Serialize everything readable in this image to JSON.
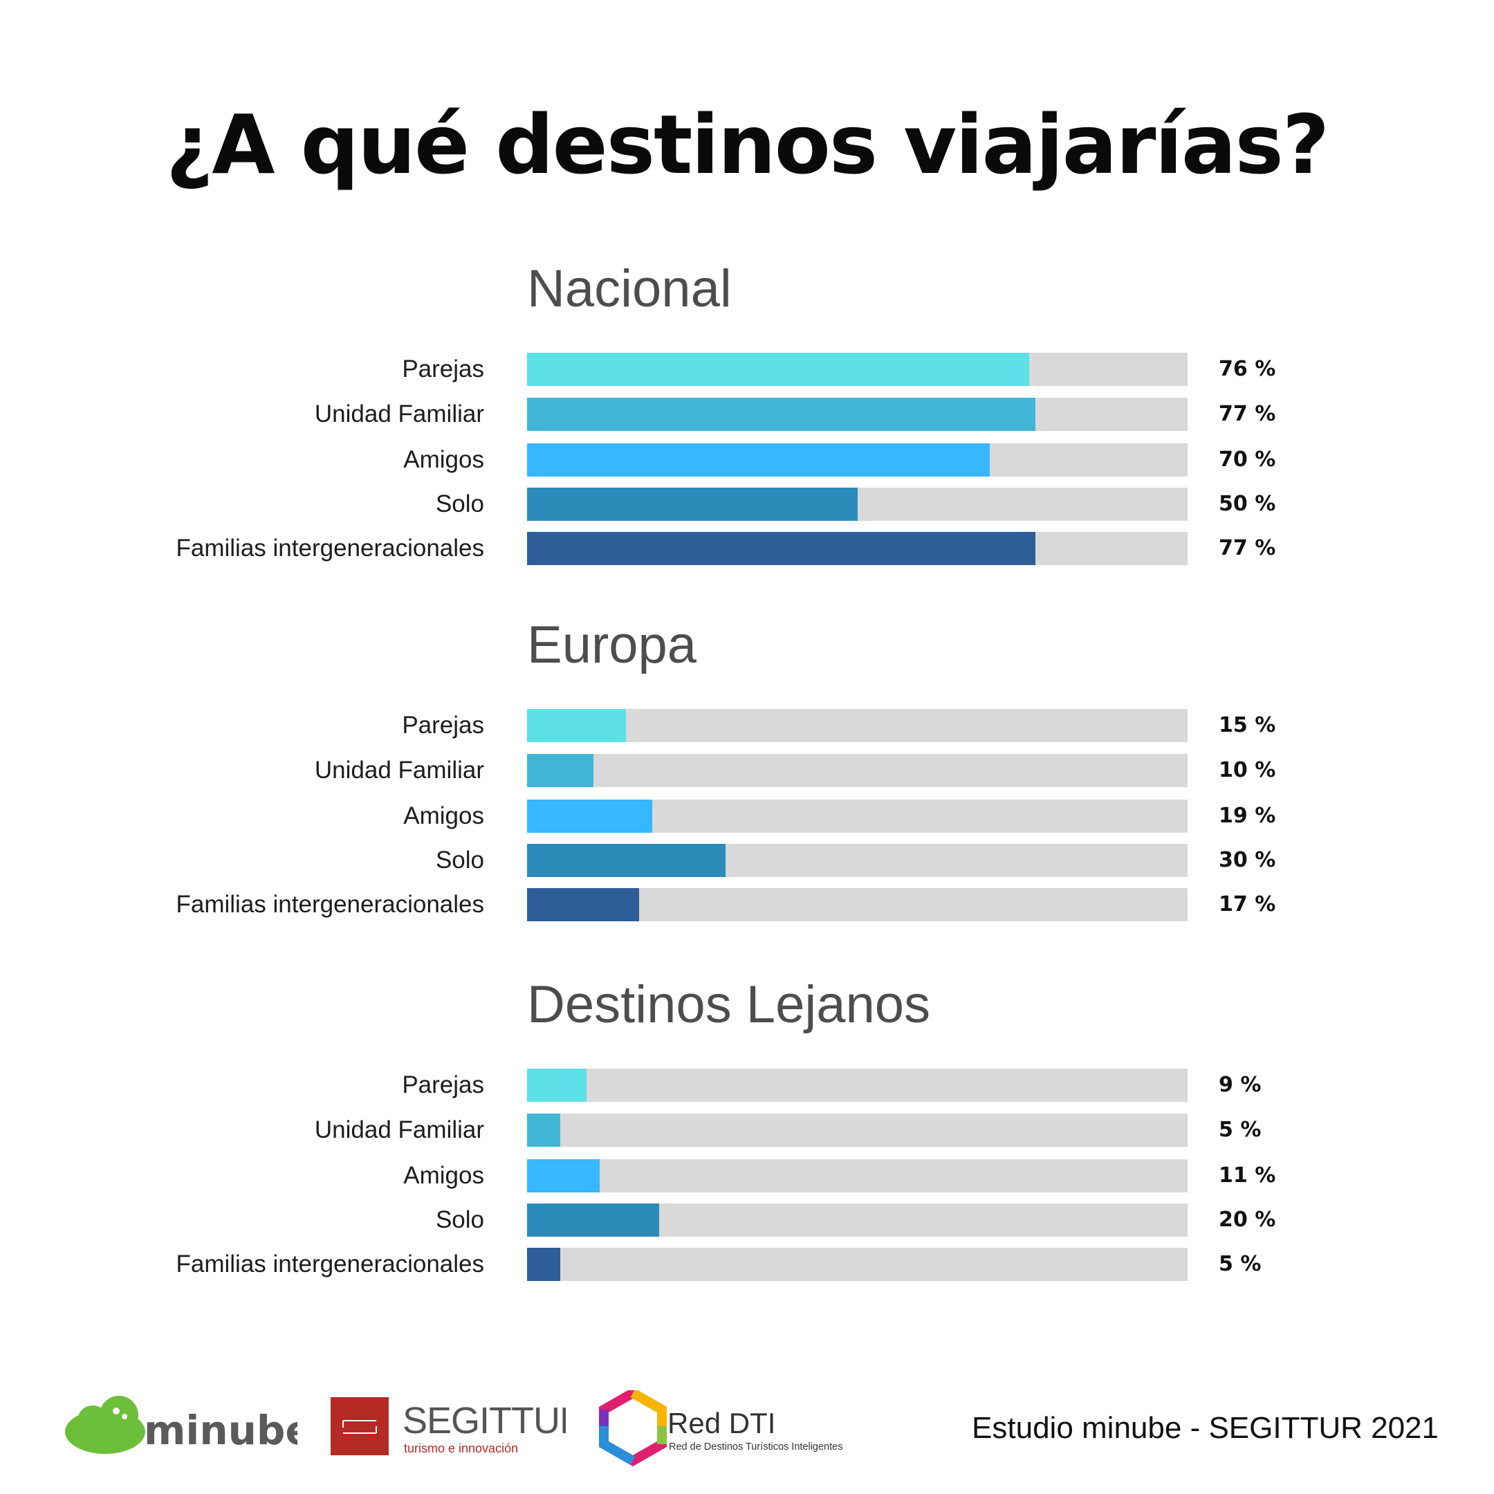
{
  "title": "¿A qué destinos viajarías?",
  "colors": {
    "Parejas": "#5de0e6",
    "Unidad Familiar": "#41b6d6",
    "Amigos": "#38b6ff",
    "Solo": "#2d8bba",
    "Familias intergeneracionales": "#2e5e98",
    "track": "#d9d9d9"
  },
  "chart_data": [
    {
      "type": "bar",
      "orientation": "horizontal",
      "title": "Nacional",
      "categories": [
        "Parejas",
        "Unidad Familiar",
        "Amigos",
        "Solo",
        "Familias intergeneracionales"
      ],
      "values": [
        76,
        77,
        70,
        50,
        77
      ],
      "value_labels": [
        "76 %",
        "77 %",
        "70 %",
        "50 %",
        "77 %"
      ],
      "xlim": [
        0,
        100
      ],
      "grid": false
    },
    {
      "type": "bar",
      "orientation": "horizontal",
      "title": "Europa",
      "categories": [
        "Parejas",
        "Unidad Familiar",
        "Amigos",
        "Solo",
        "Familias intergeneracionales"
      ],
      "values": [
        15,
        10,
        19,
        30,
        17
      ],
      "value_labels": [
        "15 %",
        "10 %",
        "19 %",
        "30 %",
        "17 %"
      ],
      "xlim": [
        0,
        100
      ],
      "grid": false
    },
    {
      "type": "bar",
      "orientation": "horizontal",
      "title": "Destinos Lejanos",
      "categories": [
        "Parejas",
        "Unidad Familiar",
        "Amigos",
        "Solo",
        "Familias intergeneracionales"
      ],
      "values": [
        9,
        5,
        11,
        20,
        5
      ],
      "value_labels": [
        "9 %",
        "5 %",
        "11 %",
        "20 %",
        "5 %"
      ],
      "xlim": [
        0,
        100
      ],
      "grid": false
    }
  ],
  "footer": {
    "logos": [
      {
        "name": "minube",
        "text": "minube",
        "icon": "cloud-logo",
        "color": "#6cbf3a"
      },
      {
        "name": "segittur",
        "text": "SEGITTUR",
        "tagline": "turismo e innovación",
        "color": "#b52a25"
      },
      {
        "name": "red-dti",
        "text": "Red DTI",
        "tagline": "Red de Destinos Turísticos Inteligentes",
        "color": "#2e2e2e"
      }
    ],
    "credit": "Estudio minube - SEGITTUR 2021"
  }
}
